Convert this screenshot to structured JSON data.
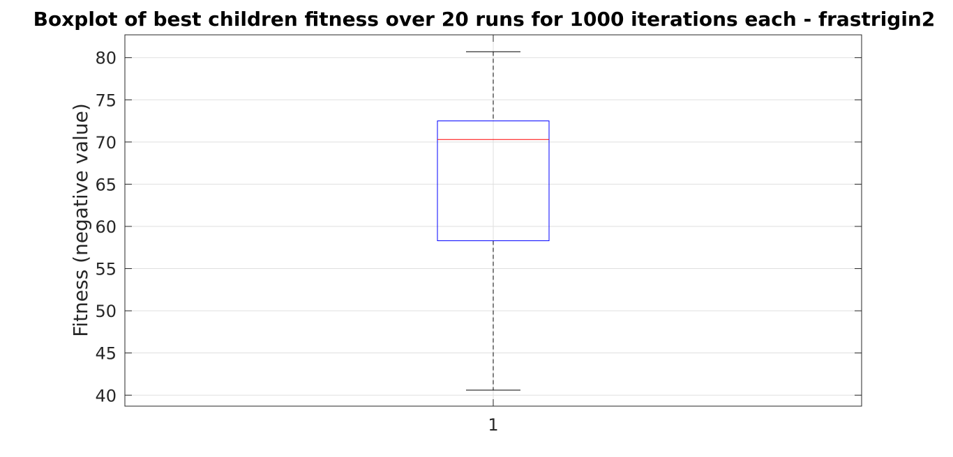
{
  "chart_data": {
    "type": "boxplot",
    "title": "Boxplot of best children fitness over 20 runs for 1000 iterations each - frastrigin2",
    "xlabel": "",
    "ylabel": "Fitness (negative value)",
    "categories": [
      "1"
    ],
    "ylim": [
      38.7,
      82.7
    ],
    "yticks": [
      40,
      45,
      50,
      55,
      60,
      65,
      70,
      75,
      80
    ],
    "grid": true,
    "boxes": [
      {
        "label": "1",
        "whisker_low": 40.6,
        "q1": 58.3,
        "median": 70.3,
        "q3": 72.5,
        "whisker_high": 80.7
      }
    ],
    "colors": {
      "box": "#0000ff",
      "median": "#ff0000",
      "whisker": "#000000",
      "grid": "#dfdfdf",
      "axes": "#262626"
    }
  }
}
